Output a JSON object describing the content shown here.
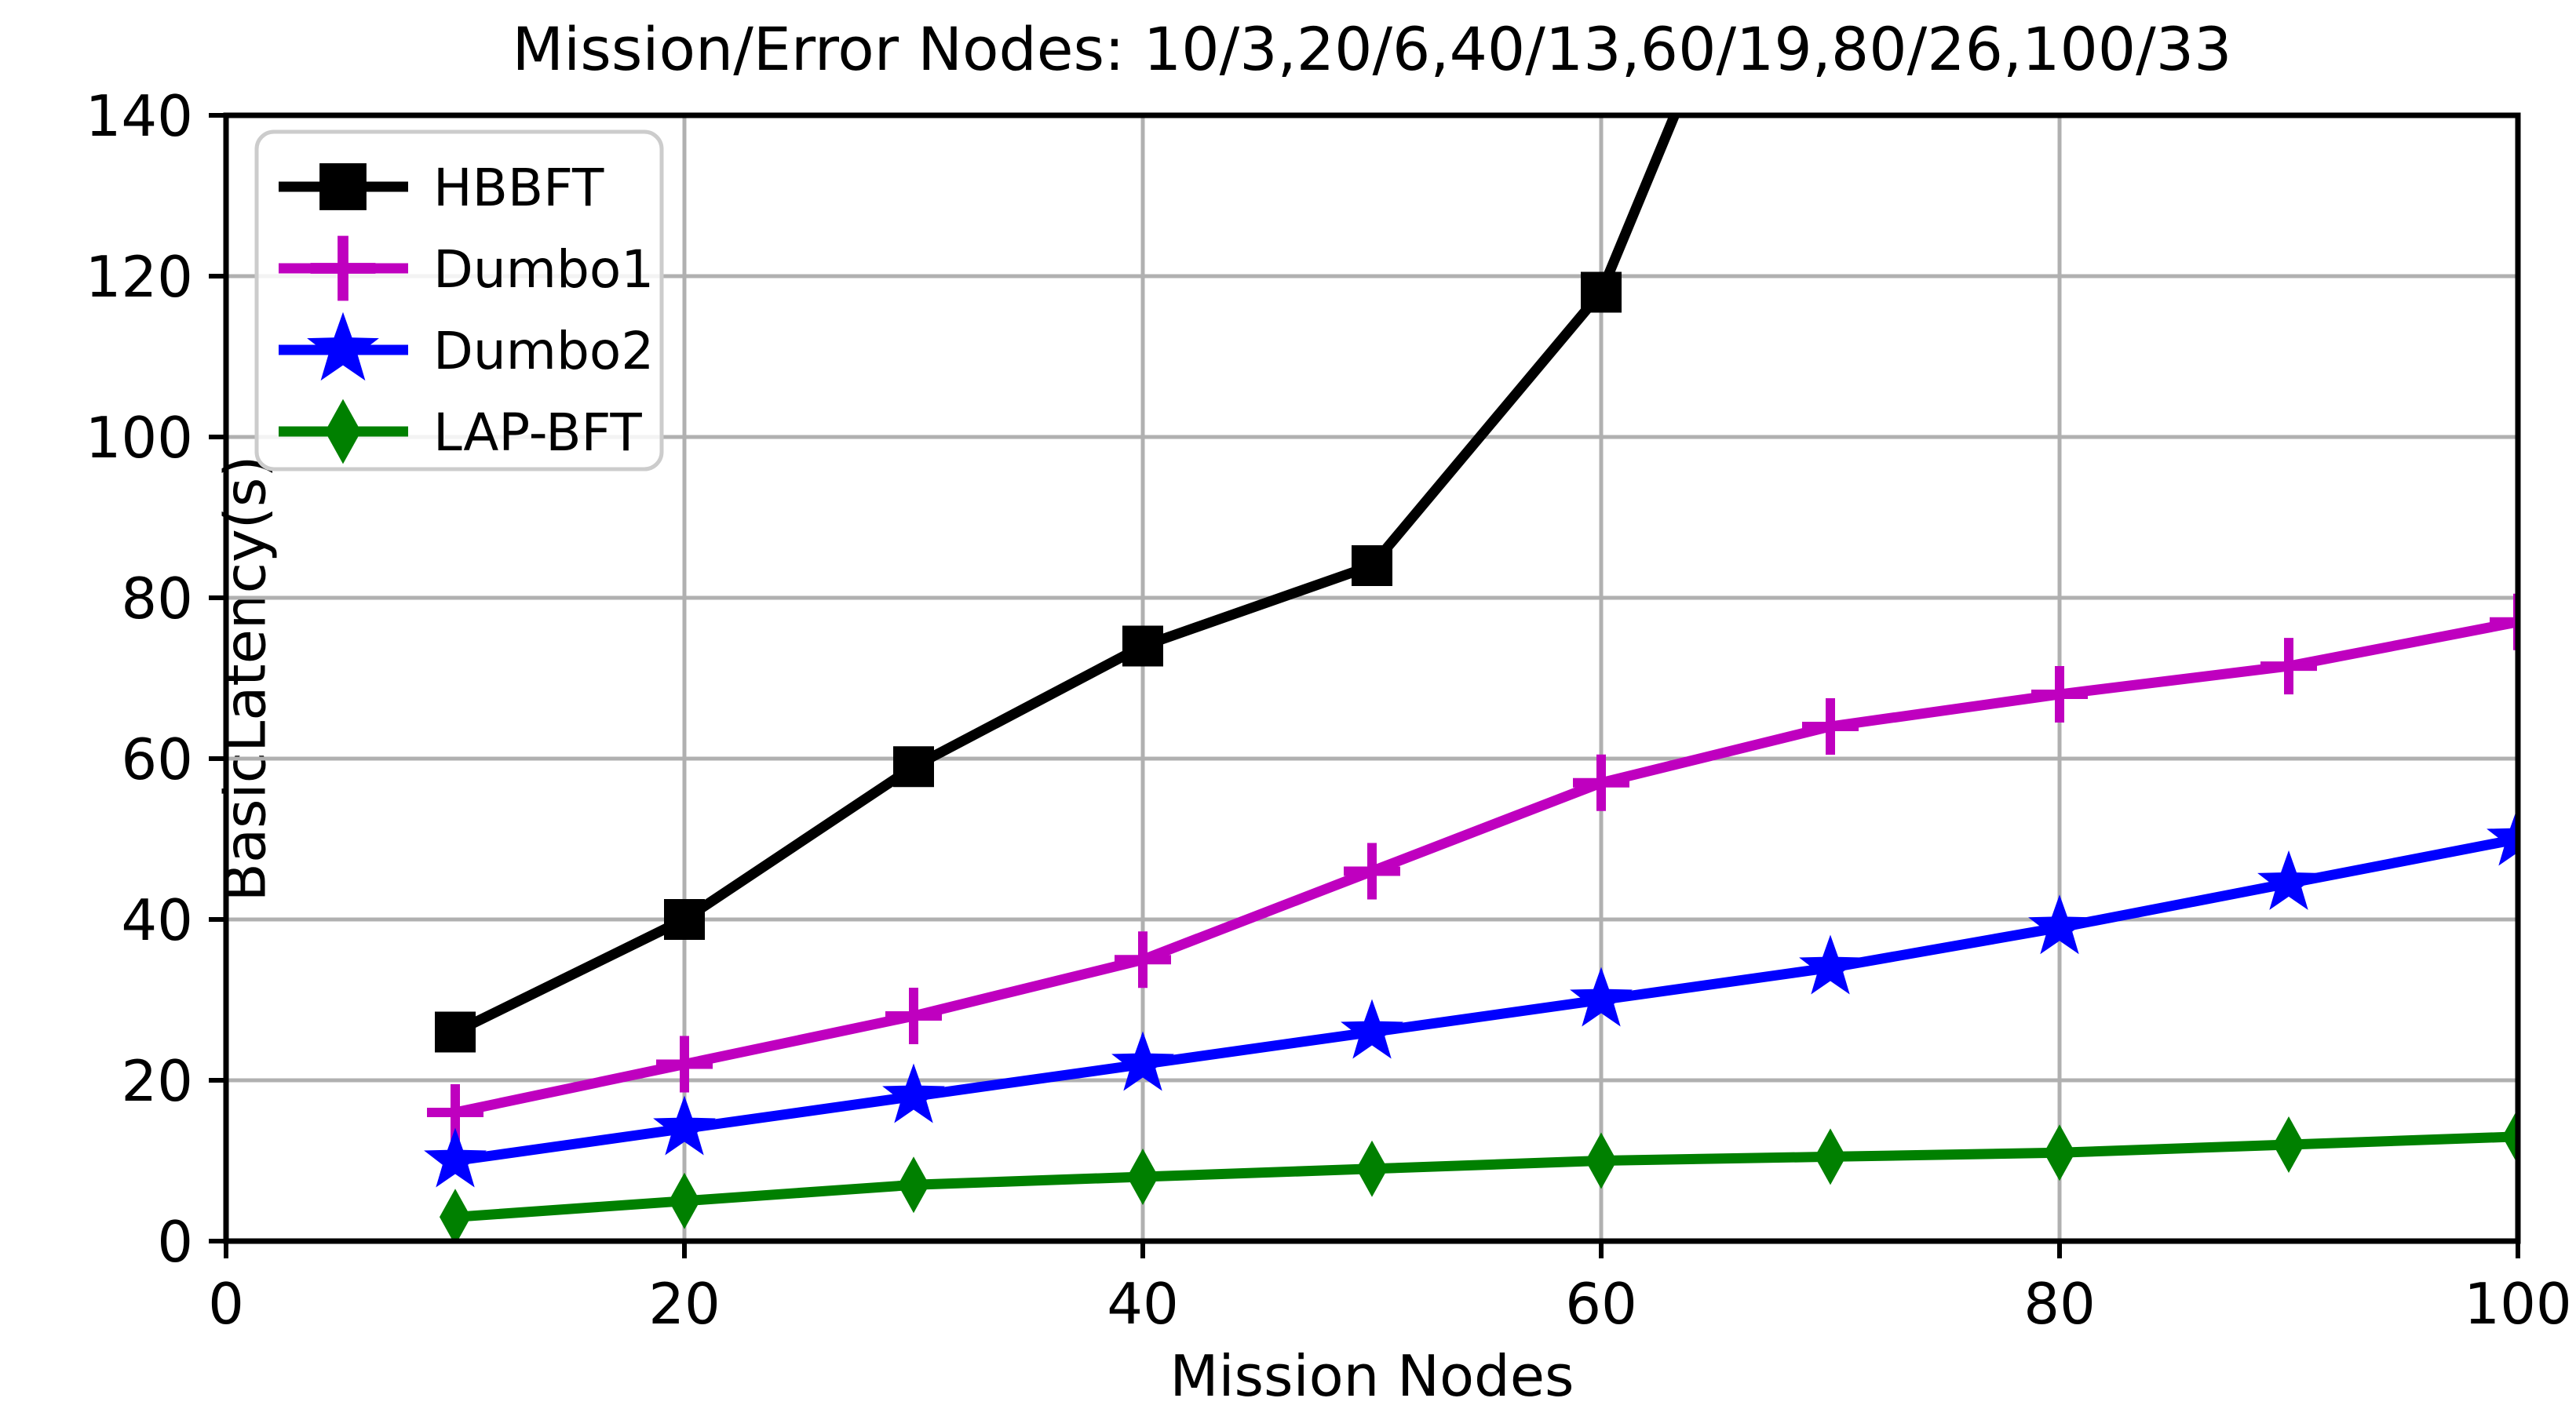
{
  "title": "Mission/Error Nodes: 10/3,20/6,40/13,60/19,80/26,100/33",
  "chart_data": {
    "type": "line",
    "title": "Mission/Error Nodes: 10/3,20/6,40/13,60/19,80/26,100/33",
    "xlabel": "Mission Nodes",
    "ylabel": "BasicLatency(s)",
    "xlim": [
      0,
      100
    ],
    "ylim": [
      0,
      140
    ],
    "xticks": [
      0,
      20,
      40,
      60,
      80,
      100
    ],
    "yticks": [
      0,
      20,
      40,
      60,
      80,
      100,
      120,
      140
    ],
    "grid": true,
    "grid_color": "#b0b0b0",
    "legend_position": "upper-left",
    "x": [
      10,
      20,
      30,
      40,
      50,
      60,
      70,
      80,
      90,
      100
    ],
    "series": [
      {
        "name": "HBBFT",
        "color": "#000000",
        "marker": "square",
        "values": [
          26,
          40,
          59,
          74,
          84,
          118,
          null,
          null,
          null,
          null
        ],
        "exits_top_at_x": 63.2
      },
      {
        "name": "Dumbo1",
        "color": "#bf00bf",
        "marker": "plus",
        "values": [
          16,
          22,
          28,
          35,
          46,
          57,
          64,
          68,
          71.5,
          77
        ]
      },
      {
        "name": "Dumbo2",
        "color": "#0000ff",
        "marker": "star",
        "values": [
          10,
          14,
          18,
          22,
          26,
          30,
          34,
          39,
          44.5,
          50
        ]
      },
      {
        "name": "LAP-BFT",
        "color": "#008000",
        "marker": "diamond",
        "values": [
          3,
          5,
          7,
          8,
          9,
          10,
          10.5,
          11,
          12,
          13
        ]
      }
    ]
  },
  "colors": {
    "axis": "#000000",
    "grid": "#b0b0b0",
    "legend_edge": "#cccccc",
    "background": "#ffffff"
  }
}
